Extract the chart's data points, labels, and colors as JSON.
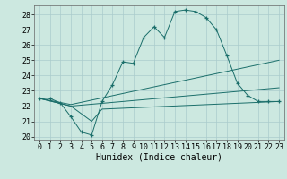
{
  "title": "",
  "xlabel": "Humidex (Indice chaleur)",
  "bg_color": "#cce8e0",
  "grid_color": "#aacccc",
  "line_color": "#1a6e6a",
  "xlim": [
    -0.5,
    23.5
  ],
  "ylim": [
    19.8,
    28.6
  ],
  "yticks": [
    20,
    21,
    22,
    23,
    24,
    25,
    26,
    27,
    28
  ],
  "xticks": [
    0,
    1,
    2,
    3,
    4,
    5,
    6,
    7,
    8,
    9,
    10,
    11,
    12,
    13,
    14,
    15,
    16,
    17,
    18,
    19,
    20,
    21,
    22,
    23
  ],
  "series": [
    {
      "x": [
        0,
        1,
        2,
        3,
        4,
        5,
        6,
        7,
        8,
        9,
        10,
        11,
        12,
        13,
        14,
        15,
        16,
        17,
        18,
        19,
        20,
        21,
        22,
        23
      ],
      "y": [
        22.5,
        22.5,
        22.2,
        21.3,
        20.3,
        20.1,
        22.3,
        23.4,
        24.9,
        24.8,
        26.5,
        27.2,
        26.5,
        28.2,
        28.3,
        28.2,
        27.8,
        27.0,
        25.3,
        23.5,
        22.7,
        22.3,
        22.3,
        22.3
      ],
      "marker": "+"
    },
    {
      "x": [
        0,
        3,
        23
      ],
      "y": [
        22.5,
        22.1,
        25.0
      ],
      "marker": null
    },
    {
      "x": [
        0,
        3,
        23
      ],
      "y": [
        22.5,
        22.0,
        23.2
      ],
      "marker": null
    },
    {
      "x": [
        0,
        3,
        4,
        5,
        6,
        23
      ],
      "y": [
        22.5,
        22.0,
        21.5,
        21.0,
        21.8,
        22.3
      ],
      "marker": null
    }
  ],
  "xlabel_fontsize": 7,
  "tick_fontsize": 6
}
